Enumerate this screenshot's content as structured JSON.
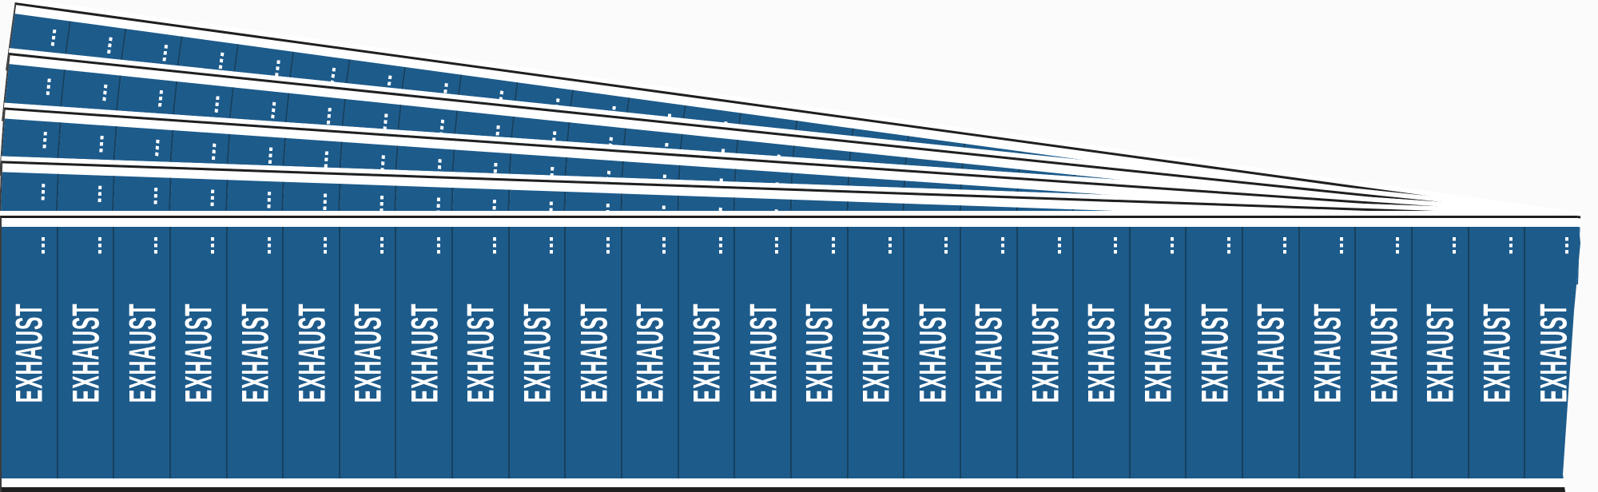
{
  "scene": {
    "description": "Fanned stack of pipe-marker label cards",
    "sheet_count": 5,
    "labels_per_sheet": 28
  },
  "product": {
    "label_text": "EXHAUST",
    "labels": [
      "EXHAUST",
      "EXHAUST",
      "EXHAUST",
      "EXHAUST",
      "EXHAUST",
      "EXHAUST",
      "EXHAUST",
      "EXHAUST",
      "EXHAUST",
      "EXHAUST",
      "EXHAUST",
      "EXHAUST",
      "EXHAUST",
      "EXHAUST",
      "EXHAUST",
      "EXHAUST",
      "EXHAUST",
      "EXHAUST",
      "EXHAUST",
      "EXHAUST",
      "EXHAUST",
      "EXHAUST",
      "EXHAUST",
      "EXHAUST",
      "EXHAUST",
      "EXHAUST",
      "EXHAUST",
      "EXHAUST"
    ]
  },
  "marks": {
    "tick_icon": "fold-tick-icon",
    "tick_style": "white dashed vertical tick near top of each label"
  },
  "colors": {
    "label_blue": "#1d5b8b",
    "divider_blue": "#17415f",
    "text_white": "#ffffff",
    "paper_white": "#ffffff",
    "edge_dark": "#1f1f1f",
    "background": "#fbfbfb"
  }
}
